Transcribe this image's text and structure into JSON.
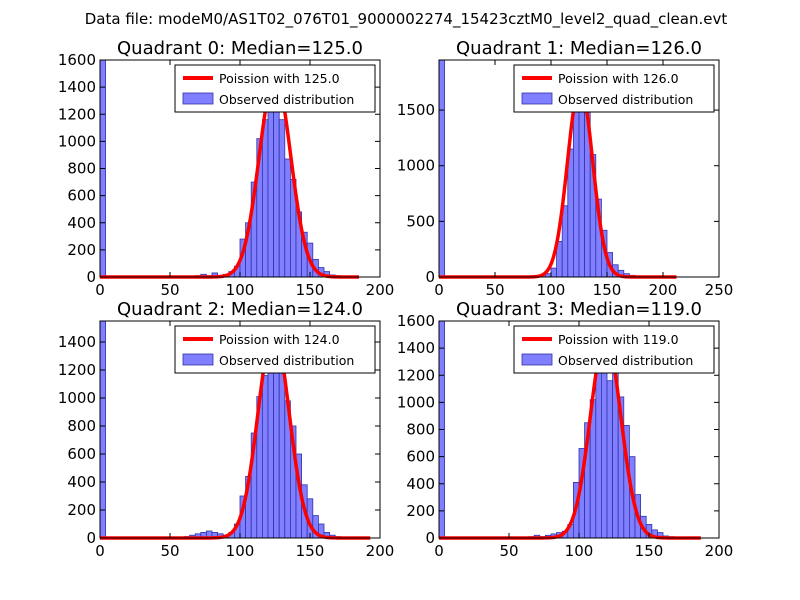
{
  "figure": {
    "suptitle": "Data file: modeM0/AS1T02_076T01_9000002274_15423cztM0_level2_quad_clean.evt"
  },
  "colors": {
    "hist_fill": "#7f7fff",
    "hist_edge": "#3333aa",
    "curve": "#ff0000",
    "axes": "#000000",
    "legend_edge": "#000000"
  },
  "chart_data": [
    {
      "type": "bar",
      "title": "Quadrant 0: Median=125.0",
      "legend": {
        "placement": "upper-right",
        "entries": [
          "Poission with 125.0",
          "Observed distribution"
        ]
      },
      "xlim": [
        0,
        200
      ],
      "ylim": [
        0,
        1600
      ],
      "xticks": [
        0,
        50,
        100,
        150,
        200
      ],
      "yticks": [
        0,
        200,
        400,
        600,
        800,
        1000,
        1200,
        1400,
        1600
      ],
      "bin_width": 4,
      "bars": [
        [
          0,
          1600
        ],
        [
          68,
          10
        ],
        [
          72,
          20
        ],
        [
          76,
          10
        ],
        [
          80,
          30
        ],
        [
          84,
          10
        ],
        [
          88,
          20
        ],
        [
          92,
          40
        ],
        [
          96,
          80
        ],
        [
          100,
          280
        ],
        [
          104,
          400
        ],
        [
          108,
          700
        ],
        [
          112,
          1020
        ],
        [
          116,
          1160
        ],
        [
          120,
          1320
        ],
        [
          124,
          1560
        ],
        [
          128,
          1160
        ],
        [
          132,
          870
        ],
        [
          136,
          720
        ],
        [
          140,
          480
        ],
        [
          144,
          330
        ],
        [
          148,
          250
        ],
        [
          152,
          130
        ],
        [
          156,
          70
        ],
        [
          160,
          40
        ],
        [
          164,
          15
        ],
        [
          168,
          10
        ],
        [
          172,
          5
        ],
        [
          176,
          5
        ],
        [
          180,
          5
        ]
      ],
      "curve": {
        "label": "Poission with 125.0",
        "peak": 1480,
        "mean": 125.0,
        "sigma": 11.2,
        "x_range": [
          0,
          185
        ]
      }
    },
    {
      "type": "bar",
      "title": "Quadrant 1: Median=126.0",
      "legend": {
        "placement": "upper-right",
        "entries": [
          "Poission with 126.0",
          "Observed distribution"
        ]
      },
      "xlim": [
        0,
        250
      ],
      "ylim": [
        0,
        1950
      ],
      "xticks": [
        0,
        50,
        100,
        150,
        200,
        250
      ],
      "yticks": [
        0,
        500,
        1000,
        1500
      ],
      "bin_width": 5,
      "bars": [
        [
          0,
          1950
        ],
        [
          80,
          10
        ],
        [
          85,
          10
        ],
        [
          90,
          20
        ],
        [
          95,
          30
        ],
        [
          100,
          80
        ],
        [
          105,
          320
        ],
        [
          110,
          640
        ],
        [
          115,
          1150
        ],
        [
          120,
          1490
        ],
        [
          125,
          1620
        ],
        [
          130,
          1480
        ],
        [
          135,
          1100
        ],
        [
          140,
          700
        ],
        [
          145,
          420
        ],
        [
          150,
          220
        ],
        [
          155,
          110
        ],
        [
          160,
          60
        ],
        [
          165,
          30
        ],
        [
          170,
          15
        ],
        [
          175,
          10
        ],
        [
          180,
          5
        ],
        [
          185,
          5
        ],
        [
          190,
          5
        ]
      ],
      "curve": {
        "label": "Poission with 126.0",
        "peak": 1720,
        "mean": 126.0,
        "sigma": 11.2,
        "x_range": [
          0,
          212
        ]
      }
    },
    {
      "type": "bar",
      "title": "Quadrant 2: Median=124.0",
      "legend": {
        "placement": "upper-right",
        "entries": [
          "Poission with 124.0",
          "Observed distribution"
        ]
      },
      "xlim": [
        0,
        200
      ],
      "ylim": [
        0,
        1550
      ],
      "xticks": [
        0,
        50,
        100,
        150,
        200
      ],
      "yticks": [
        0,
        200,
        400,
        600,
        800,
        1000,
        1200,
        1400
      ],
      "bin_width": 4,
      "bars": [
        [
          0,
          1550
        ],
        [
          60,
          10
        ],
        [
          64,
          20
        ],
        [
          68,
          30
        ],
        [
          72,
          40
        ],
        [
          76,
          50
        ],
        [
          80,
          40
        ],
        [
          84,
          30
        ],
        [
          88,
          20
        ],
        [
          92,
          40
        ],
        [
          96,
          100
        ],
        [
          100,
          300
        ],
        [
          104,
          440
        ],
        [
          108,
          750
        ],
        [
          112,
          1010
        ],
        [
          116,
          1160
        ],
        [
          120,
          1350
        ],
        [
          124,
          1480
        ],
        [
          128,
          1300
        ],
        [
          132,
          980
        ],
        [
          136,
          800
        ],
        [
          140,
          600
        ],
        [
          144,
          380
        ],
        [
          148,
          280
        ],
        [
          152,
          160
        ],
        [
          156,
          100
        ],
        [
          160,
          40
        ],
        [
          164,
          20
        ],
        [
          168,
          10
        ],
        [
          172,
          5
        ],
        [
          176,
          5
        ],
        [
          180,
          5
        ]
      ],
      "curve": {
        "label": "Poission with 124.0",
        "peak": 1480,
        "mean": 124.0,
        "sigma": 11.1,
        "x_range": [
          0,
          193
        ]
      }
    },
    {
      "type": "bar",
      "title": "Quadrant 3: Median=119.0",
      "legend": {
        "placement": "upper-right",
        "entries": [
          "Poission with 119.0",
          "Observed distribution"
        ]
      },
      "xlim": [
        0,
        200
      ],
      "ylim": [
        0,
        1600
      ],
      "xticks": [
        0,
        50,
        100,
        150,
        200
      ],
      "yticks": [
        0,
        200,
        400,
        600,
        800,
        1000,
        1200,
        1400,
        1600
      ],
      "bin_width": 4,
      "bars": [
        [
          0,
          1600
        ],
        [
          64,
          10
        ],
        [
          68,
          20
        ],
        [
          72,
          10
        ],
        [
          76,
          20
        ],
        [
          80,
          30
        ],
        [
          84,
          40
        ],
        [
          88,
          50
        ],
        [
          92,
          100
        ],
        [
          96,
          410
        ],
        [
          100,
          660
        ],
        [
          104,
          850
        ],
        [
          108,
          1020
        ],
        [
          112,
          1320
        ],
        [
          116,
          1500
        ],
        [
          120,
          1160
        ],
        [
          124,
          1350
        ],
        [
          128,
          1040
        ],
        [
          132,
          830
        ],
        [
          136,
          600
        ],
        [
          140,
          320
        ],
        [
          144,
          160
        ],
        [
          148,
          100
        ],
        [
          152,
          60
        ],
        [
          156,
          40
        ],
        [
          160,
          15
        ],
        [
          164,
          10
        ],
        [
          168,
          5
        ],
        [
          172,
          5
        ]
      ],
      "curve": {
        "label": "Poission with 119.0",
        "peak": 1480,
        "mean": 119.0,
        "sigma": 10.9,
        "x_range": [
          0,
          187
        ]
      }
    }
  ]
}
